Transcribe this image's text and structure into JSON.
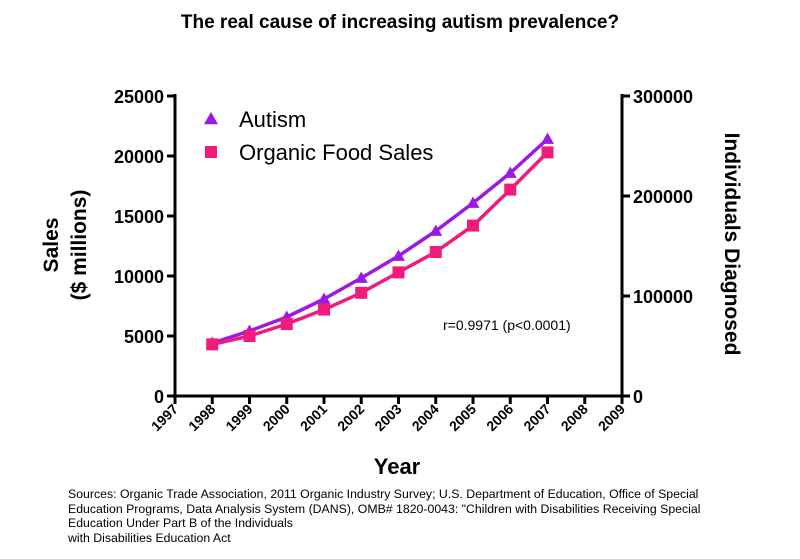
{
  "chart_data": {
    "type": "line",
    "title": "The real cause of increasing autism prevalence?",
    "xlabel": "Year",
    "ylabel_left": [
      "Sales",
      "($ millions)"
    ],
    "ylabel_right": "Individuals Diagnosed",
    "x_ticks": [
      "1997",
      "1998",
      "1999",
      "2000",
      "2001",
      "2002",
      "2003",
      "2004",
      "2005",
      "2006",
      "2007",
      "2008",
      "2009"
    ],
    "xlim": [
      1997,
      2009
    ],
    "ylim_left": [
      0,
      25000
    ],
    "ylim_right": [
      0,
      300000
    ],
    "y_ticks_left": [
      "0",
      "5000",
      "10000",
      "15000",
      "20000",
      "25000"
    ],
    "y_ticks_right": [
      "0",
      "100000",
      "200000",
      "300000"
    ],
    "legend_position": "top-left",
    "series": [
      {
        "name": "Autism",
        "axis": "right",
        "marker": "triangle",
        "color": "#9b1ae3",
        "x": [
          1998,
          1999,
          2000,
          2001,
          2002,
          2003,
          2004,
          2005,
          2006,
          2007
        ],
        "values": [
          53000,
          65000,
          79000,
          97000,
          118000,
          140000,
          165000,
          193000,
          223000,
          257000
        ]
      },
      {
        "name": "Organic Food Sales",
        "axis": "left",
        "marker": "square",
        "color": "#f01b7a",
        "x": [
          1998,
          1999,
          2000,
          2001,
          2002,
          2003,
          2004,
          2005,
          2006,
          2007
        ],
        "values": [
          4300,
          5000,
          6000,
          7200,
          8600,
          10300,
          12000,
          14200,
          17200,
          20300
        ]
      }
    ],
    "annotation": "r=0.9971 (p<0.0001)"
  },
  "sources": [
    "Sources: Organic Trade Association,  2011 Organic Industry Survey; U.S. Department of Education, Office of Special",
    "Education Programs, Data Analysis System (DANS), OMB# 1820-0043: \"Children with Disabilities Receiving Special",
    "Education Under Part B of the Individuals",
    "with Disabilities Education Act"
  ]
}
